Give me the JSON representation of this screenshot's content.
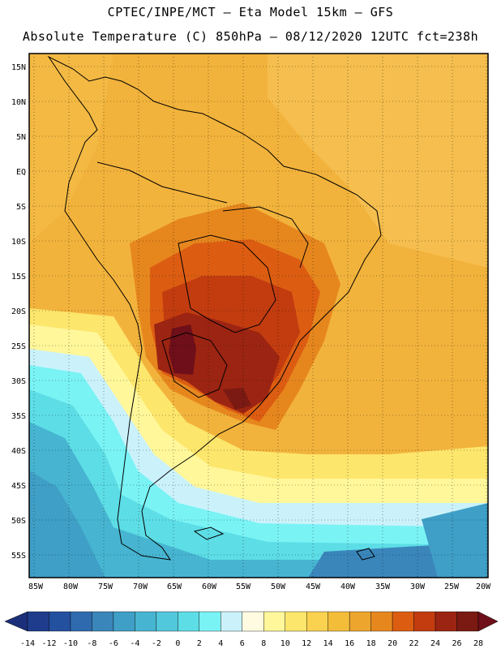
{
  "header": {
    "line1": "CPTEC/INPE/MCT –   Eta Model 15km – GFS",
    "line2": "Absolute Temperature (C) 850hPa – 08/12/2020 12UTC fct=238h"
  },
  "axes": {
    "lat_labels": [
      "15N",
      "10N",
      "5N",
      "EQ",
      "5S",
      "10S",
      "15S",
      "20S",
      "25S",
      "30S",
      "35S",
      "40S",
      "45S",
      "50S",
      "55S"
    ],
    "lon_labels": [
      "85W",
      "80W",
      "75W",
      "70W",
      "65W",
      "60W",
      "55W",
      "50W",
      "45W",
      "40W",
      "35W",
      "30W",
      "25W",
      "20W"
    ]
  },
  "colorbar": {
    "labels": [
      "-14",
      "-12",
      "-10",
      "-8",
      "-6",
      "-4",
      "-2",
      "0",
      "2",
      "4",
      "6",
      "8",
      "10",
      "12",
      "14",
      "16",
      "18",
      "20",
      "22",
      "24",
      "26",
      "28"
    ],
    "under_color": "#1c2f7a",
    "over_color": "#6e0f1a",
    "colors": [
      "#1f3c8c",
      "#2450a0",
      "#2f6aae",
      "#3a86bb",
      "#3f9fc6",
      "#47b5d1",
      "#52c8dc",
      "#5ddde6",
      "#7af3f5",
      "#cbf2fb",
      "#fffbe0",
      "#fff79a",
      "#fde66c",
      "#fad24f",
      "#f3bd3a",
      "#eda52d",
      "#e6871e",
      "#dc5d12",
      "#c23c0f",
      "#9c2412",
      "#7a1a12"
    ]
  },
  "map": {
    "background_colors": {
      "ocean_warm": "#f2b33c",
      "ocean_mid": "#f6c95a",
      "hot_core": "#6e0f1a",
      "hot": "#9c2412",
      "warm": "#c8541a",
      "cool_ocean": "#5ddde6",
      "cold_ocean": "#3f9fc6"
    }
  }
}
